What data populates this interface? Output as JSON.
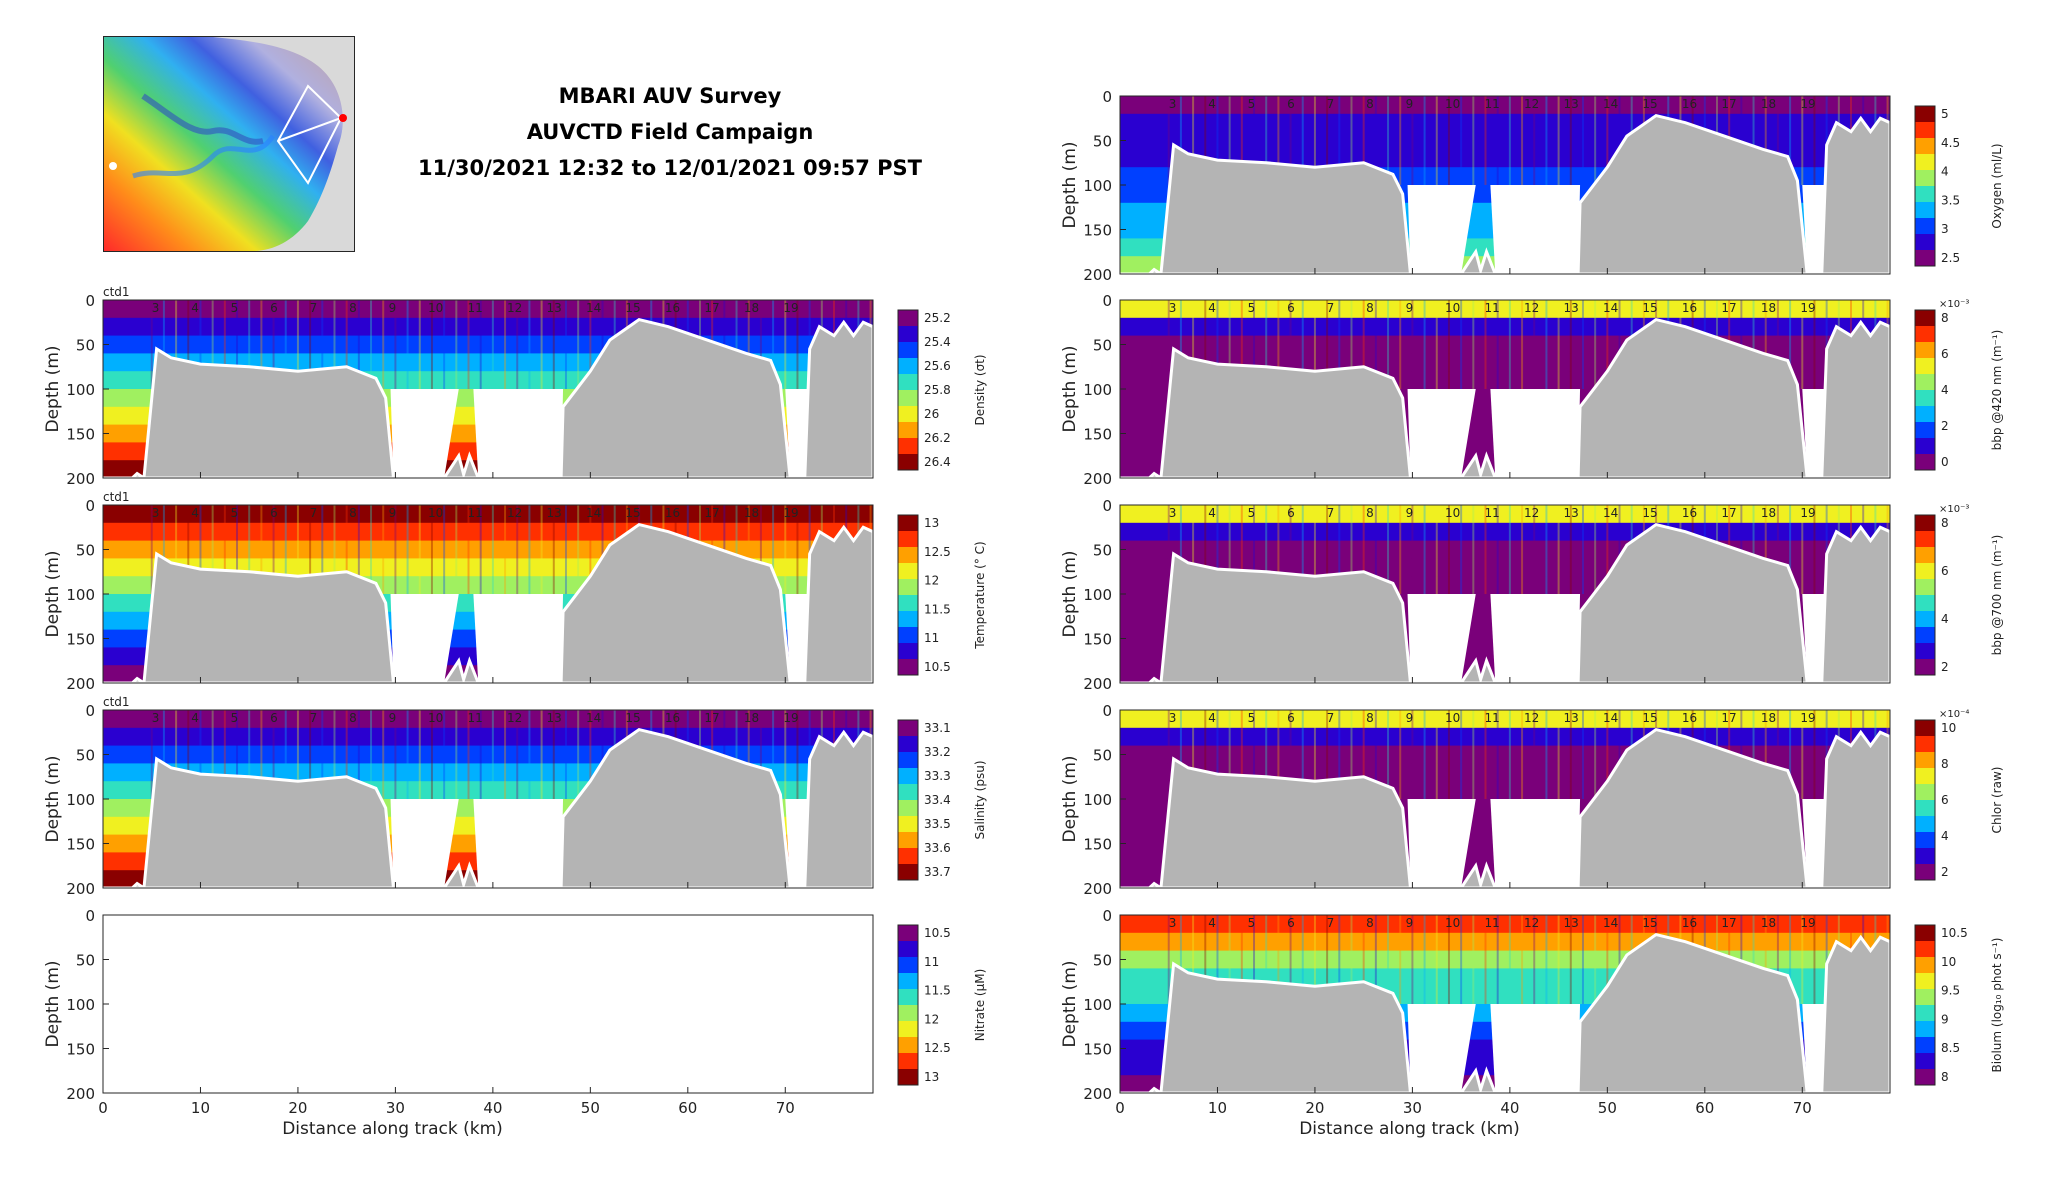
{
  "title": {
    "line1": "MBARI AUV Survey",
    "line2": "AUVCTD Field Campaign",
    "line3": "11/30/2021 12:32 to 12/01/2021 09:57 PST"
  },
  "colors": {
    "bathymetry": "#b4b4b4",
    "frame": "#262626",
    "map_land": "#d9d9d9",
    "map_track": "#ffffff"
  },
  "map": {
    "description_icon": "bathymetry-map-icon"
  },
  "shared": {
    "xlabel": "Distance along track (km)",
    "ylabel": "Depth (m)",
    "xlim": [
      0,
      79
    ],
    "ylim": [
      0,
      200
    ],
    "xticks": [
      "0",
      "10",
      "20",
      "30",
      "40",
      "50",
      "60",
      "70"
    ],
    "yticks": [
      "0",
      "50",
      "100",
      "150",
      "200"
    ],
    "profile_label": "ctd1",
    "station_labels": [
      "3",
      "4",
      "5",
      "6",
      "7",
      "8",
      "9",
      "10",
      "11",
      "12",
      "13",
      "14",
      "15",
      "16",
      "17",
      "18",
      "19"
    ]
  },
  "chart_data": [
    {
      "type": "heatmap",
      "id": "density",
      "column": "left",
      "row": 0,
      "colorbar_label": "Density (σt)",
      "colormap": "jet",
      "cbar_ticks": [
        "25.2",
        "25.4",
        "25.6",
        "25.8",
        "26",
        "26.2",
        "26.4"
      ],
      "cbar_reversed": true,
      "xlabel": "",
      "ylabel": "Depth (m)",
      "show_xticklabels": false,
      "show_ctd1": true
    },
    {
      "type": "heatmap",
      "id": "temperature",
      "column": "left",
      "row": 1,
      "colorbar_label": "Temperature (° C)",
      "colormap": "jet",
      "cbar_ticks": [
        "13",
        "12.5",
        "12",
        "11.5",
        "11",
        "10.5"
      ],
      "cbar_reversed": false,
      "xlabel": "",
      "ylabel": "Depth (m)",
      "show_xticklabels": false,
      "show_ctd1": true
    },
    {
      "type": "heatmap",
      "id": "salinity",
      "column": "left",
      "row": 2,
      "colorbar_label": "Salinity (psu)",
      "colormap": "jet",
      "cbar_ticks": [
        "33.1",
        "33.2",
        "33.3",
        "33.4",
        "33.5",
        "33.6",
        "33.7"
      ],
      "cbar_reversed": true,
      "xlabel": "",
      "ylabel": "Depth (m)",
      "show_xticklabels": false,
      "show_ctd1": true
    },
    {
      "type": "heatmap",
      "id": "nitrate",
      "column": "left",
      "row": 3,
      "colorbar_label": "Nitrate (μM)",
      "colormap": "jet",
      "cbar_ticks": [
        "10.5",
        "11",
        "11.5",
        "12",
        "12.5",
        "13"
      ],
      "cbar_reversed": true,
      "empty": true,
      "xlabel": "Distance along track (km)",
      "ylabel": "Depth (m)",
      "show_xticklabels": true,
      "show_ctd1": false
    },
    {
      "type": "heatmap",
      "id": "oxygen",
      "column": "right",
      "row": -1,
      "colorbar_label": "Oxygen (ml/L)",
      "colormap": "jet",
      "cbar_ticks": [
        "5",
        "4.5",
        "4",
        "3.5",
        "3",
        "2.5"
      ],
      "cbar_reversed": false,
      "xlabel": "",
      "ylabel": "Depth (m)",
      "show_xticklabels": false,
      "show_ctd1": false
    },
    {
      "type": "heatmap",
      "id": "bbp420",
      "column": "right",
      "row": 0,
      "colorbar_label": "bbp @420 nm (m⁻¹)",
      "colormap": "jet",
      "cbar_ticks": [
        "8",
        "6",
        "4",
        "2",
        "0"
      ],
      "cbar_exponent": "×10⁻³",
      "cbar_reversed": false,
      "xlabel": "",
      "ylabel": "Depth (m)",
      "show_xticklabels": false,
      "show_ctd1": false
    },
    {
      "type": "heatmap",
      "id": "bbp700",
      "column": "right",
      "row": 1,
      "colorbar_label": "bbp @700 nm (m⁻¹)",
      "colormap": "jet",
      "cbar_ticks": [
        "8",
        "6",
        "4",
        "2"
      ],
      "cbar_exponent": "×10⁻³",
      "cbar_reversed": false,
      "xlabel": "",
      "ylabel": "Depth (m)",
      "show_xticklabels": false,
      "show_ctd1": false
    },
    {
      "type": "heatmap",
      "id": "chlor",
      "column": "right",
      "row": 2,
      "colorbar_label": "Chlor (raw)",
      "colormap": "jet",
      "cbar_ticks": [
        "10",
        "8",
        "6",
        "4",
        "2"
      ],
      "cbar_exponent": "×10⁻⁴",
      "cbar_reversed": false,
      "xlabel": "",
      "ylabel": "Depth (m)",
      "show_xticklabels": false,
      "show_ctd1": false
    },
    {
      "type": "heatmap",
      "id": "biolum",
      "column": "right",
      "row": 3,
      "colorbar_label": "Biolum (log₁₀ phot s⁻¹)",
      "colormap": "jet",
      "cbar_ticks": [
        "10.5",
        "10",
        "9.5",
        "9",
        "8.5",
        "8"
      ],
      "cbar_reversed": false,
      "xlabel": "Distance along track (km)",
      "ylabel": "Depth (m)",
      "show_xticklabels": true,
      "show_ctd1": false
    }
  ]
}
